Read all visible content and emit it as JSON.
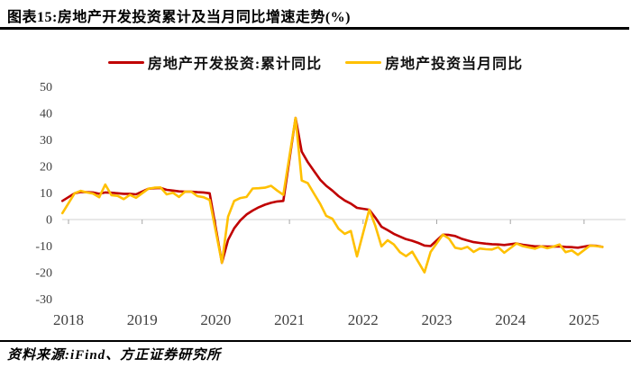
{
  "page": {
    "title": "图表15:房地产开发投资累计及当月同比增速走势(%)",
    "source": "资料来源:iFind、方正证券研究所"
  },
  "chart_data": {
    "type": "line",
    "title": "图表15:房地产开发投资累计及当月同比增速走势(%)",
    "xlabel": "",
    "ylabel": "",
    "unit": "%",
    "grid": "zero-baseline-only",
    "legend_position": "top-center",
    "x_axis": {
      "ticks": [
        2018,
        2019,
        2020,
        2021,
        2022,
        2023,
        2024,
        2025
      ],
      "coverage": "monthly, Dec 2017 - Apr 2025"
    },
    "y_axis": {
      "ticks": [
        50,
        40,
        30,
        20,
        10,
        0,
        -10,
        -20,
        -30
      ],
      "min": -30,
      "max": 50
    },
    "series": [
      {
        "name": "房地产开发投资:累计同比",
        "color": "#C00000",
        "points": [
          [
            2017.917,
            7.0
          ],
          [
            2018.083,
            9.9
          ],
          [
            2018.167,
            10.4
          ],
          [
            2018.25,
            10.3
          ],
          [
            2018.333,
            10.2
          ],
          [
            2018.417,
            9.7
          ],
          [
            2018.5,
            10.2
          ],
          [
            2018.583,
            10.1
          ],
          [
            2018.667,
            9.9
          ],
          [
            2018.75,
            9.7
          ],
          [
            2018.833,
            9.7
          ],
          [
            2018.917,
            9.5
          ],
          [
            2019.083,
            11.6
          ],
          [
            2019.167,
            11.8
          ],
          [
            2019.25,
            11.9
          ],
          [
            2019.333,
            11.2
          ],
          [
            2019.417,
            10.9
          ],
          [
            2019.5,
            10.6
          ],
          [
            2019.583,
            10.5
          ],
          [
            2019.667,
            10.5
          ],
          [
            2019.75,
            10.3
          ],
          [
            2019.833,
            10.2
          ],
          [
            2019.917,
            9.9
          ],
          [
            2020.083,
            -16.3
          ],
          [
            2020.167,
            -7.7
          ],
          [
            2020.25,
            -3.3
          ],
          [
            2020.333,
            -0.3
          ],
          [
            2020.417,
            1.9
          ],
          [
            2020.5,
            3.4
          ],
          [
            2020.583,
            4.6
          ],
          [
            2020.667,
            5.6
          ],
          [
            2020.75,
            6.3
          ],
          [
            2020.833,
            6.8
          ],
          [
            2020.917,
            7.0
          ],
          [
            2021.083,
            38.3
          ],
          [
            2021.167,
            25.6
          ],
          [
            2021.25,
            21.6
          ],
          [
            2021.333,
            18.3
          ],
          [
            2021.417,
            15.0
          ],
          [
            2021.5,
            12.7
          ],
          [
            2021.583,
            10.9
          ],
          [
            2021.667,
            8.8
          ],
          [
            2021.75,
            7.2
          ],
          [
            2021.833,
            6.0
          ],
          [
            2021.917,
            4.4
          ],
          [
            2022.083,
            3.7
          ],
          [
            2022.167,
            0.7
          ],
          [
            2022.25,
            -2.7
          ],
          [
            2022.333,
            -4.0
          ],
          [
            2022.417,
            -5.4
          ],
          [
            2022.5,
            -6.4
          ],
          [
            2022.583,
            -7.4
          ],
          [
            2022.667,
            -8.0
          ],
          [
            2022.75,
            -8.8
          ],
          [
            2022.833,
            -9.8
          ],
          [
            2022.917,
            -10.0
          ],
          [
            2023.083,
            -5.7
          ],
          [
            2023.167,
            -5.8
          ],
          [
            2023.25,
            -6.2
          ],
          [
            2023.333,
            -7.2
          ],
          [
            2023.417,
            -7.9
          ],
          [
            2023.5,
            -8.5
          ],
          [
            2023.583,
            -8.8
          ],
          [
            2023.667,
            -9.1
          ],
          [
            2023.75,
            -9.3
          ],
          [
            2023.833,
            -9.4
          ],
          [
            2023.917,
            -9.6
          ],
          [
            2024.083,
            -9.0
          ],
          [
            2024.167,
            -9.5
          ],
          [
            2024.25,
            -9.8
          ],
          [
            2024.333,
            -10.1
          ],
          [
            2024.417,
            -10.1
          ],
          [
            2024.5,
            -10.2
          ],
          [
            2024.583,
            -10.2
          ],
          [
            2024.667,
            -10.1
          ],
          [
            2024.75,
            -10.3
          ],
          [
            2024.833,
            -10.4
          ],
          [
            2024.917,
            -10.6
          ],
          [
            2025.083,
            -9.8
          ],
          [
            2025.167,
            -9.9
          ],
          [
            2025.25,
            -10.3
          ]
        ]
      },
      {
        "name": "房地产投资当月同比",
        "color": "#FFC000",
        "points": [
          [
            2017.917,
            2.4
          ],
          [
            2018.083,
            9.9
          ],
          [
            2018.167,
            10.8
          ],
          [
            2018.25,
            10.2
          ],
          [
            2018.333,
            9.8
          ],
          [
            2018.417,
            8.4
          ],
          [
            2018.5,
            13.2
          ],
          [
            2018.583,
            9.2
          ],
          [
            2018.667,
            8.9
          ],
          [
            2018.75,
            7.7
          ],
          [
            2018.833,
            9.3
          ],
          [
            2018.917,
            8.2
          ],
          [
            2019.083,
            11.6
          ],
          [
            2019.167,
            12.0
          ],
          [
            2019.25,
            12.1
          ],
          [
            2019.333,
            9.5
          ],
          [
            2019.417,
            10.1
          ],
          [
            2019.5,
            8.5
          ],
          [
            2019.583,
            10.5
          ],
          [
            2019.667,
            10.5
          ],
          [
            2019.75,
            8.8
          ],
          [
            2019.833,
            8.4
          ],
          [
            2019.917,
            7.4
          ],
          [
            2020.083,
            -16.3
          ],
          [
            2020.167,
            1.1
          ],
          [
            2020.25,
            7.0
          ],
          [
            2020.333,
            8.1
          ],
          [
            2020.417,
            8.5
          ],
          [
            2020.5,
            11.7
          ],
          [
            2020.583,
            11.8
          ],
          [
            2020.667,
            12.0
          ],
          [
            2020.75,
            12.7
          ],
          [
            2020.833,
            10.9
          ],
          [
            2020.917,
            9.3
          ],
          [
            2021.083,
            38.3
          ],
          [
            2021.167,
            14.7
          ],
          [
            2021.25,
            13.7
          ],
          [
            2021.333,
            9.8
          ],
          [
            2021.417,
            5.9
          ],
          [
            2021.5,
            1.4
          ],
          [
            2021.583,
            0.3
          ],
          [
            2021.667,
            -3.5
          ],
          [
            2021.75,
            -5.4
          ],
          [
            2021.833,
            -4.3
          ],
          [
            2021.917,
            -13.9
          ],
          [
            2022.083,
            3.7
          ],
          [
            2022.167,
            -2.4
          ],
          [
            2022.25,
            -10.1
          ],
          [
            2022.333,
            -7.8
          ],
          [
            2022.417,
            -9.4
          ],
          [
            2022.5,
            -12.3
          ],
          [
            2022.583,
            -13.8
          ],
          [
            2022.667,
            -12.1
          ],
          [
            2022.75,
            -16.0
          ],
          [
            2022.833,
            -19.9
          ],
          [
            2022.917,
            -12.2
          ],
          [
            2023.083,
            -5.7
          ],
          [
            2023.167,
            -7.2
          ],
          [
            2023.25,
            -10.6
          ],
          [
            2023.333,
            -11.1
          ],
          [
            2023.417,
            -10.3
          ],
          [
            2023.5,
            -12.2
          ],
          [
            2023.583,
            -10.9
          ],
          [
            2023.667,
            -11.2
          ],
          [
            2023.75,
            -11.3
          ],
          [
            2023.833,
            -10.4
          ],
          [
            2023.917,
            -12.5
          ],
          [
            2024.083,
            -9.0
          ],
          [
            2024.167,
            -10.0
          ],
          [
            2024.25,
            -10.5
          ],
          [
            2024.333,
            -11.0
          ],
          [
            2024.417,
            -10.1
          ],
          [
            2024.5,
            -10.8
          ],
          [
            2024.583,
            -10.2
          ],
          [
            2024.667,
            -9.4
          ],
          [
            2024.75,
            -12.3
          ],
          [
            2024.833,
            -11.6
          ],
          [
            2024.917,
            -13.3
          ],
          [
            2025.083,
            -9.8
          ],
          [
            2025.167,
            -10.0
          ],
          [
            2025.25,
            -10.3
          ]
        ]
      }
    ]
  }
}
